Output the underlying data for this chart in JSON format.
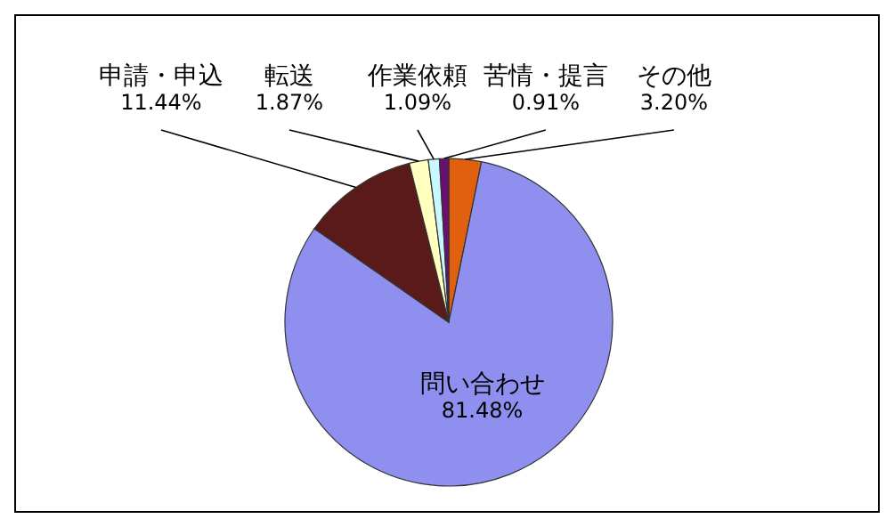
{
  "chart_data": {
    "type": "pie",
    "categories": [
      "その他",
      "問い合わせ",
      "申請・申込",
      "転送",
      "作業依頼",
      "苦情・提言"
    ],
    "values": [
      3.2,
      81.48,
      11.44,
      1.87,
      1.09,
      0.91
    ],
    "colors": [
      "#e0600f",
      "#8f8ff0",
      "#5a1a1a",
      "#ffffc0",
      "#c8f8ff",
      "#6a1070"
    ],
    "value_labels": [
      "3.20%",
      "81.48%",
      "11.44%",
      "1.87%",
      "1.09%",
      "0.91%"
    ],
    "legend": false
  }
}
